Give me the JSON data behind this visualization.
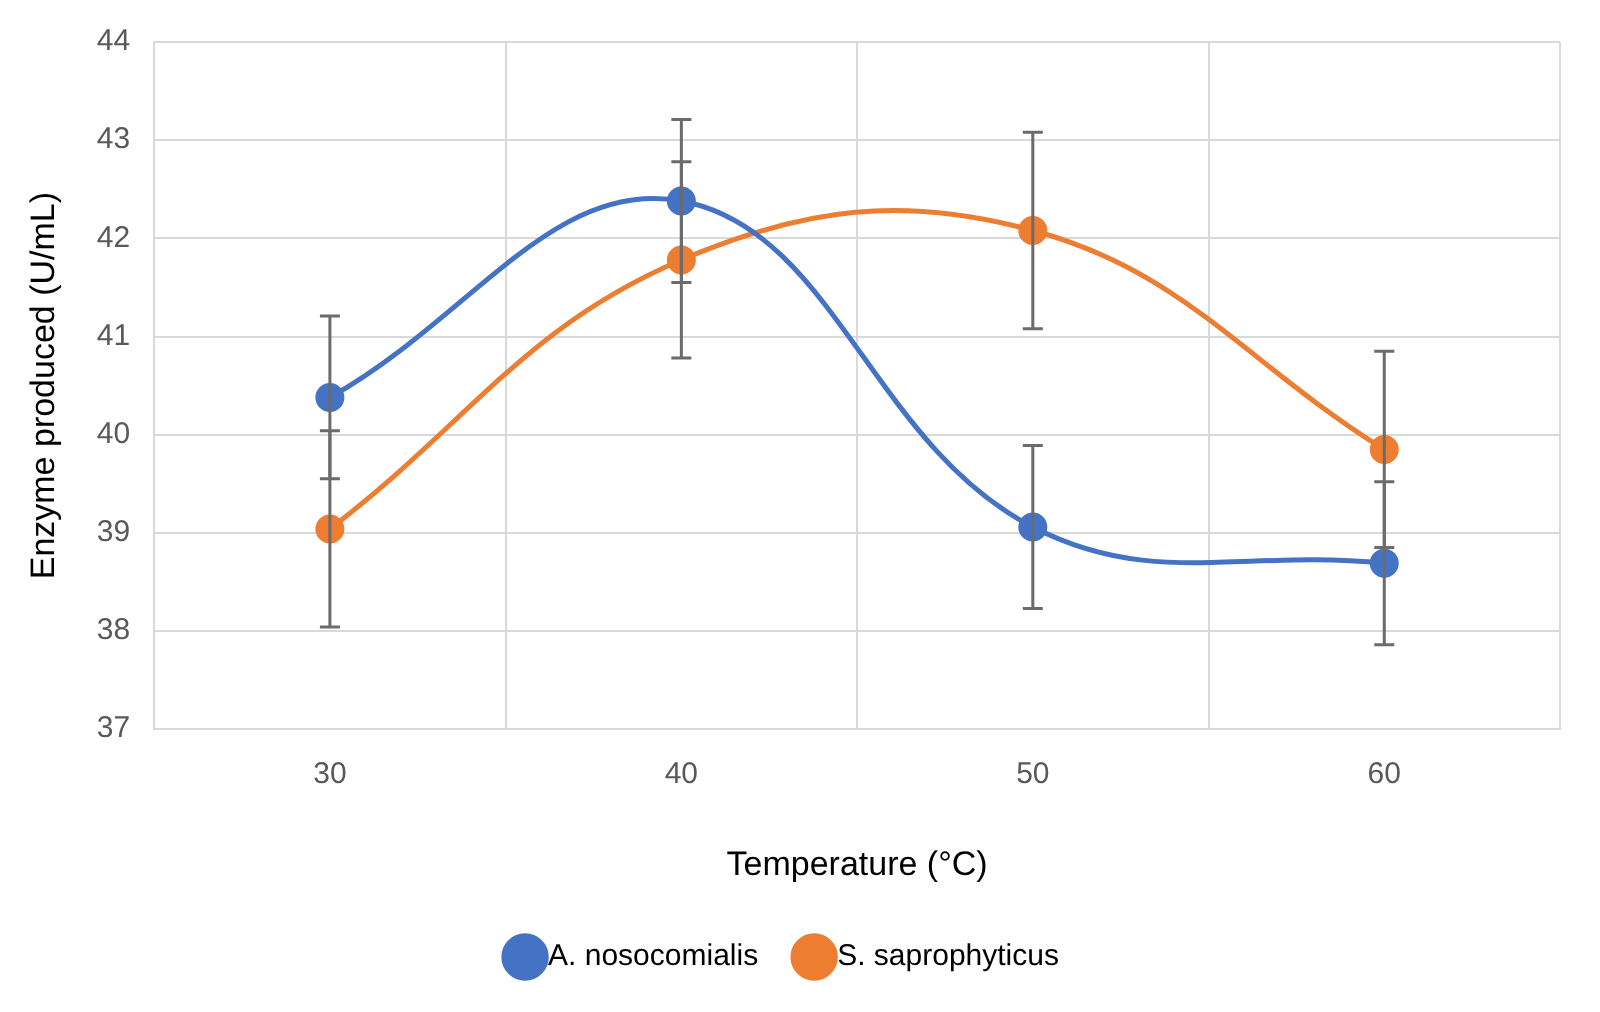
{
  "chart_data": {
    "type": "line",
    "xlabel": "Temperature (°C)",
    "ylabel": "Enzyme produced (U/mL)",
    "categories": [
      "30",
      "40",
      "50",
      "60"
    ],
    "series": [
      {
        "name": "A. nosocomialis",
        "color": "#4472c4",
        "values": [
          40.38,
          42.38,
          39.06,
          38.69
        ],
        "errors": [
          0.83,
          0.83,
          0.83,
          0.83
        ]
      },
      {
        "name": "S. saprophyticus",
        "color": "#ed7d31",
        "values": [
          39.04,
          41.78,
          42.08,
          39.85
        ],
        "errors": [
          1.0,
          1.0,
          1.0,
          1.0
        ]
      }
    ],
    "ylim": [
      37,
      44
    ],
    "yticks": [
      37,
      38,
      39,
      40,
      41,
      42,
      43,
      44
    ],
    "grid": true,
    "legend": "bottom",
    "marker": "circle",
    "line_style": "solid"
  }
}
